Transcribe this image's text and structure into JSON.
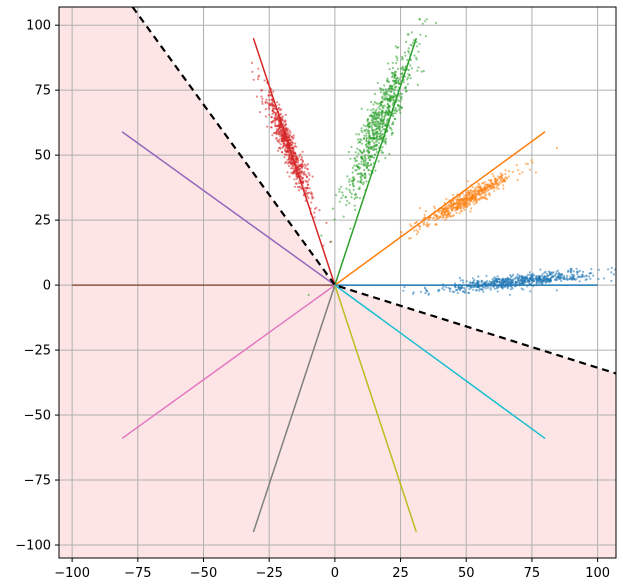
{
  "chart_data": {
    "type": "scatter",
    "title": "",
    "xlabel": "",
    "ylabel": "",
    "xlim": [
      -105,
      107
    ],
    "ylim": [
      -105,
      107
    ],
    "grid": true,
    "legend": "none",
    "x_ticks": [
      -100,
      -75,
      -50,
      -25,
      0,
      25,
      50,
      75,
      100
    ],
    "x_tick_labels": [
      "−100",
      "−75",
      "−50",
      "−25",
      "0",
      "25",
      "50",
      "75",
      "100"
    ],
    "y_ticks": [
      100,
      75,
      50,
      25,
      0,
      -25,
      -50,
      -75,
      -100
    ],
    "y_tick_labels": [
      "100",
      "75",
      "50",
      "25",
      "0",
      "−25",
      "−50",
      "−75",
      "−100"
    ],
    "shaded_region": {
      "color": "#fde5e5",
      "boundary": [
        [
          -77,
          107
        ],
        [
          0,
          0
        ],
        [
          107,
          -34
        ]
      ]
    },
    "decision_boundary": {
      "color": "#000000",
      "style": "dashed",
      "points": [
        [
          -77,
          107
        ],
        [
          0,
          0
        ],
        [
          107,
          -34
        ]
      ]
    },
    "rays": [
      {
        "color": "#1f77b4",
        "end": [
          100,
          0
        ]
      },
      {
        "color": "#ff7f0e",
        "end": [
          80,
          59
        ]
      },
      {
        "color": "#2ca02c",
        "end": [
          31,
          95
        ]
      },
      {
        "color": "#d62728",
        "end": [
          -31,
          95
        ]
      },
      {
        "color": "#9467bd",
        "end": [
          -81,
          59
        ]
      },
      {
        "color": "#8c564b",
        "end": [
          -100,
          0
        ]
      },
      {
        "color": "#e377c2",
        "end": [
          -81,
          -59
        ]
      },
      {
        "color": "#7f7f7f",
        "end": [
          -31,
          -95
        ]
      },
      {
        "color": "#bcbd22",
        "end": [
          31,
          -95
        ]
      },
      {
        "color": "#17becf",
        "end": [
          80,
          -59
        ]
      }
    ],
    "clusters": [
      {
        "color": "#1f77b4",
        "center": [
          70,
          1.5
        ],
        "spread_along": 14,
        "spread_across": 1.2,
        "angle_deg": 6,
        "n": 650
      },
      {
        "color": "#ff7f0e",
        "center": [
          50,
          33
        ],
        "spread_along": 10,
        "spread_across": 1.5,
        "angle_deg": 30,
        "n": 550
      },
      {
        "color": "#2ca02c",
        "center": [
          17,
          62
        ],
        "spread_along": 15,
        "spread_across": 2.6,
        "angle_deg": 68,
        "n": 800
      },
      {
        "color": "#d62728",
        "center": [
          -18,
          54
        ],
        "spread_along": 10,
        "spread_across": 1.5,
        "angle_deg": -68,
        "n": 650
      }
    ]
  }
}
